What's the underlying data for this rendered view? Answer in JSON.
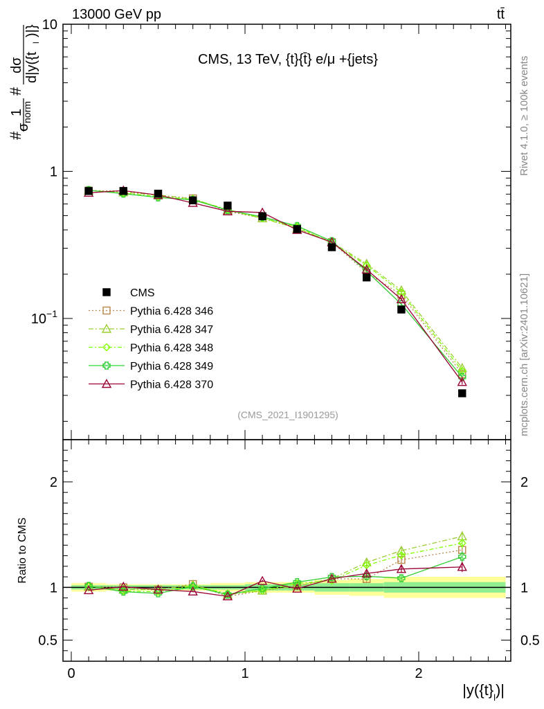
{
  "header": {
    "left": "13000 GeV pp",
    "right": "tt̄"
  },
  "side": {
    "rivet": "Rivet 4.1.0, ≥ 100k events",
    "mcplots": "mcplots.cern.ch [arXiv:2401.10621]"
  },
  "chart_data": {
    "type": "line",
    "title": "CMS, 13 TeV, {t}{t̄} e/μ +{jets}",
    "analysis_id": "(CMS_2021_I1901295)",
    "xlabel": "|y({t}_l)|",
    "ylabel": "#1/σ_norm #dσ/d|y({t}_l)|}",
    "ylabel_parts": {
      "one": "1",
      "sigma": "σ",
      "norm": "norm",
      "dsigma": "dσ",
      "denom": "d|y({t",
      "sub": "l",
      "tail": ")|}"
    },
    "xlim": [
      -0.1,
      2.6
    ],
    "ylim_main": [
      0.015,
      10
    ],
    "yscale_main": "log",
    "ylim_ratio": [
      0.3,
      2.4
    ],
    "ratio_ylabel": "Ratio to CMS",
    "x": [
      0.1,
      0.3,
      0.5,
      0.7,
      0.9,
      1.1,
      1.3,
      1.5,
      1.7,
      1.9,
      2.25
    ],
    "bins": [
      [
        0.0,
        0.2
      ],
      [
        0.2,
        0.4
      ],
      [
        0.4,
        0.6
      ],
      [
        0.6,
        0.8
      ],
      [
        0.8,
        1.0
      ],
      [
        1.0,
        1.2
      ],
      [
        1.2,
        1.4
      ],
      [
        1.4,
        1.6
      ],
      [
        1.6,
        1.8
      ],
      [
        1.8,
        2.0
      ],
      [
        2.0,
        2.5
      ]
    ],
    "x_ticks": [
      0,
      1,
      2
    ],
    "x_tick_labels": [
      "0",
      "1",
      "2"
    ],
    "main_ticks": [
      {
        "value": 0.1,
        "base": "10",
        "exp": "−1"
      },
      {
        "value": 1,
        "base": "1",
        "exp": ""
      },
      {
        "value": 10,
        "base": "10",
        "exp": ""
      }
    ],
    "ratio_ticks": [
      {
        "value": 0.5,
        "label": "0.5"
      },
      {
        "value": 1,
        "label": "1"
      },
      {
        "value": 2,
        "label": "2"
      }
    ],
    "data": {
      "name": "CMS",
      "values": [
        0.735,
        0.735,
        0.705,
        0.635,
        0.585,
        0.495,
        0.405,
        0.305,
        0.19,
        0.115,
        0.031
      ],
      "stat_band": [
        0.02,
        0.02,
        0.02,
        0.02,
        0.02,
        0.03,
        0.03,
        0.04,
        0.04,
        0.05,
        0.05
      ],
      "total_band": [
        0.04,
        0.03,
        0.03,
        0.03,
        0.04,
        0.05,
        0.05,
        0.07,
        0.08,
        0.1,
        0.1
      ],
      "color": "#000000"
    },
    "series": [
      {
        "name": "Pythia 6.428 346",
        "color": "#b8864b",
        "dash": "2,3",
        "marker": "square",
        "values": [
          0.74,
          0.735,
          0.69,
          0.655,
          0.535,
          0.48,
          0.41,
          0.33,
          0.205,
          0.145,
          0.042
        ],
        "errors": [
          0.005,
          0.005,
          0.005,
          0.005,
          0.005,
          0.005,
          0.005,
          0.005,
          0.005,
          0.004,
          0.0015
        ]
      },
      {
        "name": "Pythia 6.428 347",
        "color": "#9acd32",
        "dash": "7,3,2,3",
        "marker": "triangle",
        "values": [
          0.74,
          0.72,
          0.69,
          0.65,
          0.545,
          0.48,
          0.41,
          0.33,
          0.235,
          0.155,
          0.046
        ],
        "errors": [
          0.005,
          0.005,
          0.005,
          0.005,
          0.005,
          0.005,
          0.005,
          0.005,
          0.005,
          0.004,
          0.0015
        ]
      },
      {
        "name": "Pythia 6.428 348",
        "color": "#7fff00",
        "dash": "6,3,2,3",
        "marker": "diamond",
        "values": [
          0.745,
          0.71,
          0.675,
          0.645,
          0.55,
          0.48,
          0.42,
          0.325,
          0.23,
          0.15,
          0.044
        ],
        "errors": [
          0.005,
          0.005,
          0.005,
          0.005,
          0.005,
          0.005,
          0.005,
          0.005,
          0.005,
          0.004,
          0.0015
        ]
      },
      {
        "name": "Pythia 6.428 349",
        "color": "#32cd32",
        "dash": "",
        "marker": "cross",
        "values": [
          0.745,
          0.705,
          0.665,
          0.64,
          0.545,
          0.49,
          0.425,
          0.335,
          0.21,
          0.125,
          0.04
        ],
        "errors": [
          0.005,
          0.005,
          0.005,
          0.005,
          0.005,
          0.005,
          0.005,
          0.005,
          0.005,
          0.004,
          0.0015
        ]
      },
      {
        "name": "Pythia 6.428 370",
        "color": "#990033",
        "dash": "",
        "marker": "triangle",
        "values": [
          0.715,
          0.74,
          0.69,
          0.61,
          0.535,
          0.525,
          0.4,
          0.33,
          0.215,
          0.135,
          0.037
        ],
        "errors": [
          0.005,
          0.005,
          0.005,
          0.005,
          0.005,
          0.005,
          0.005,
          0.005,
          0.005,
          0.004,
          0.0015
        ]
      }
    ],
    "legend_position": "lower-left"
  }
}
